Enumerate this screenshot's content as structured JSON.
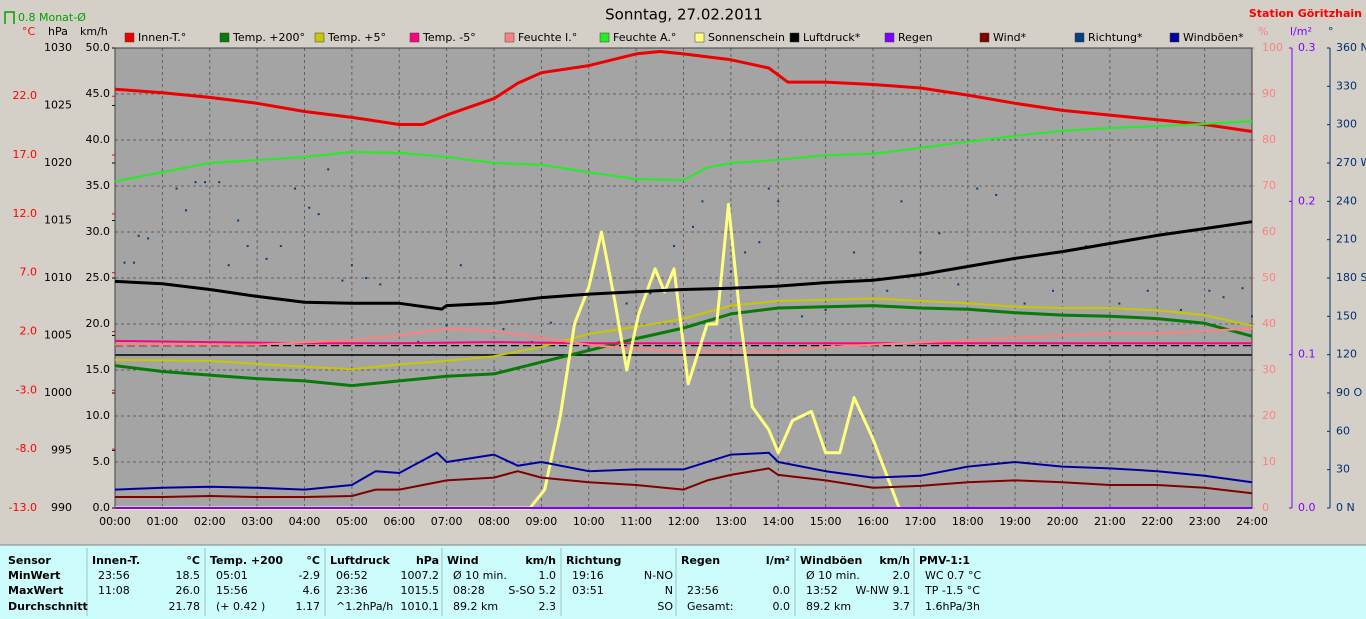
{
  "chart_data": {
    "type": "line",
    "title": "Sonntag, 27.02.2011",
    "station": "Station Göritzhain",
    "monthly_avg": {
      "label": "0.8 Monat-Ø",
      "value": 0.8,
      "axis": "c",
      "color": "#00a000"
    },
    "grid": true,
    "xlim": [
      0,
      24
    ],
    "xticks": [
      {
        "value": 0,
        "label": "00:00"
      },
      {
        "value": 1,
        "label": "01:00"
      },
      {
        "value": 2,
        "label": "02:00"
      },
      {
        "value": 3,
        "label": "03:00"
      },
      {
        "value": 4,
        "label": "04:00"
      },
      {
        "value": 5,
        "label": "05:00"
      },
      {
        "value": 6,
        "label": "06:00"
      },
      {
        "value": 7,
        "label": "07:00"
      },
      {
        "value": 8,
        "label": "08:00"
      },
      {
        "value": 9,
        "label": "09:00"
      },
      {
        "value": 10,
        "label": "10:00"
      },
      {
        "value": 11,
        "label": "11:00"
      },
      {
        "value": 12,
        "label": "12:00"
      },
      {
        "value": 13,
        "label": "13:00"
      },
      {
        "value": 14,
        "label": "14:00"
      },
      {
        "value": 15,
        "label": "15:00"
      },
      {
        "value": 16,
        "label": "16:00"
      },
      {
        "value": 17,
        "label": "17:00"
      },
      {
        "value": 18,
        "label": "18:00"
      },
      {
        "value": 19,
        "label": "19:00"
      },
      {
        "value": 20,
        "label": "20:00"
      },
      {
        "value": 21,
        "label": "21:00"
      },
      {
        "value": 22,
        "label": "22:00"
      },
      {
        "value": 23,
        "label": "23:00"
      },
      {
        "value": 24,
        "label": "24:00"
      }
    ],
    "axes": [
      {
        "id": "c",
        "label": "°C",
        "color": "#ff0000",
        "lim": [
          -13,
          26.1
        ],
        "ticks": [
          {
            "value": -13,
            "label": "-13.0"
          },
          {
            "value": -8,
            "label": "-8.0"
          },
          {
            "value": -3,
            "label": "-3.0"
          },
          {
            "value": 2,
            "label": "2.0"
          },
          {
            "value": 7,
            "label": "7.0"
          },
          {
            "value": 12,
            "label": "12.0"
          },
          {
            "value": 17,
            "label": "17.0"
          },
          {
            "value": 22,
            "label": "22.0"
          }
        ]
      },
      {
        "id": "hPa",
        "label": "hPa",
        "color": "#000000",
        "lim": [
          990,
          1030
        ],
        "ticks": [
          990,
          995,
          1000,
          1005,
          1010,
          1015,
          1020,
          1025,
          1030
        ]
      },
      {
        "id": "kmh",
        "label": "km/h",
        "color": "#000000",
        "lim": [
          0,
          50
        ],
        "grid": true,
        "ticks": [
          {
            "value": 0,
            "label": "0.0"
          },
          {
            "value": 5,
            "label": "5.0"
          },
          {
            "value": 10,
            "label": "10.0"
          },
          {
            "value": 15,
            "label": "15.0"
          },
          {
            "value": 20,
            "label": "20.0"
          },
          {
            "value": 25,
            "label": "25.0"
          },
          {
            "value": 30,
            "label": "30.0"
          },
          {
            "value": 35,
            "label": "35.0"
          },
          {
            "value": 40,
            "label": "40.0"
          },
          {
            "value": 45,
            "label": "45.0"
          },
          {
            "value": 50,
            "label": "50.0"
          }
        ]
      },
      {
        "id": "pct",
        "label": "%",
        "color": "#ff8080",
        "lim": [
          0,
          100
        ],
        "ticks": [
          0,
          10,
          20,
          30,
          40,
          50,
          60,
          70,
          80,
          90,
          100
        ]
      },
      {
        "id": "lm2",
        "label": "l/m²",
        "color": "#8000ff",
        "lim": [
          0,
          0.3
        ],
        "ticks": [
          {
            "value": 0,
            "label": "0.0"
          },
          0.1,
          0.2,
          0.3
        ]
      },
      {
        "id": "deg",
        "label": "°",
        "color": "#003070",
        "lim": [
          0,
          360
        ],
        "ticks": [
          {
            "value": 0,
            "label": "0 N"
          },
          30,
          60,
          {
            "value": 90,
            "label": "90 O"
          },
          120,
          150,
          {
            "value": 180,
            "label": "180 S"
          },
          210,
          240,
          {
            "value": 270,
            "label": "270 W"
          },
          300,
          330,
          {
            "value": 360,
            "label": "360 N"
          }
        ]
      }
    ],
    "series": [
      {
        "name": "Innen-T.°",
        "color": "#ee0000",
        "axis": "c",
        "width": 3,
        "x": [
          0,
          1,
          2,
          3,
          4,
          5,
          6,
          6.5,
          7,
          8,
          8.5,
          9,
          10,
          11,
          11.5,
          12,
          13,
          13.8,
          14.2,
          15,
          16,
          17,
          18,
          19,
          20,
          21,
          22,
          23,
          24
        ],
        "values": [
          22.6,
          22.3,
          21.9,
          21.4,
          20.7,
          20.2,
          19.6,
          19.6,
          20.4,
          21.8,
          23.1,
          24.0,
          24.6,
          25.6,
          25.8,
          25.6,
          25.1,
          24.4,
          23.2,
          23.2,
          23.0,
          22.7,
          22.1,
          21.4,
          20.8,
          20.4,
          20.0,
          19.6,
          19.0
        ]
      },
      {
        "name": "Temp. +200°",
        "color": "#087a08",
        "axis": "c",
        "width": 3,
        "x": [
          0,
          1,
          2,
          3,
          4,
          5,
          6,
          7,
          8,
          9,
          10,
          11,
          12,
          13,
          14,
          15,
          16,
          17,
          18,
          19,
          20,
          21,
          22,
          23,
          24
        ],
        "values": [
          -0.9,
          -1.4,
          -1.7,
          -2.0,
          -2.2,
          -2.6,
          -2.2,
          -1.8,
          -1.6,
          -0.6,
          0.4,
          1.4,
          2.3,
          3.5,
          4.0,
          4.1,
          4.2,
          4.0,
          3.9,
          3.6,
          3.4,
          3.3,
          3.1,
          2.7,
          1.6
        ]
      },
      {
        "name": "Temp. +5°",
        "color": "#c8c800",
        "axis": "c",
        "width": 2,
        "x": [
          0,
          2,
          4,
          5,
          6,
          7,
          8,
          9,
          10,
          11,
          12,
          13,
          14,
          15,
          16,
          17,
          18,
          19,
          20,
          21,
          22,
          23,
          24
        ],
        "values": [
          -0.4,
          -0.5,
          -1.0,
          -1.2,
          -0.8,
          -0.5,
          -0.1,
          0.7,
          1.8,
          2.4,
          3.1,
          4.2,
          4.6,
          4.7,
          4.8,
          4.6,
          4.4,
          4.1,
          4.0,
          4.0,
          3.8,
          3.4,
          2.5
        ]
      },
      {
        "name": "Temp. -5°",
        "color": "#ff0080",
        "axis": "c",
        "width": 2,
        "x": [
          0,
          2,
          4,
          6,
          8,
          10,
          12,
          14,
          16,
          18,
          20,
          22,
          24
        ],
        "values": [
          1.2,
          1.1,
          1.0,
          1.0,
          1.1,
          1.0,
          1.0,
          1.0,
          1.0,
          1.0,
          1.0,
          1.0,
          1.0
        ]
      },
      {
        "name": "Feuchte I.°",
        "color": "#ff8080",
        "axis": "pct",
        "width": 2,
        "x": [
          0,
          1,
          2,
          3,
          4,
          5,
          6,
          7,
          8,
          9,
          10,
          11,
          12,
          13,
          14,
          15,
          16,
          17,
          18,
          19,
          20,
          21,
          22,
          23,
          24
        ],
        "values": [
          35.5,
          35.5,
          35.5,
          35.5,
          36,
          36.5,
          37.5,
          39,
          38.5,
          37,
          35.5,
          34.5,
          34,
          34,
          34,
          35,
          35.5,
          36,
          36.5,
          37,
          37.5,
          38,
          38,
          38.5,
          39
        ]
      },
      {
        "name": "Feuchte A.°",
        "color": "#22ee22",
        "axis": "pct",
        "width": 2,
        "x": [
          0,
          2,
          4,
          5,
          6,
          7,
          8,
          9,
          10,
          11,
          12,
          12.5,
          13,
          14,
          15,
          16,
          17,
          18,
          19,
          20,
          21,
          22,
          23,
          24
        ],
        "values": [
          71,
          75,
          76.3,
          77.4,
          77.2,
          76.3,
          75,
          74.6,
          73,
          71.5,
          71.3,
          74,
          75,
          75.7,
          76.7,
          77,
          78.3,
          79.6,
          80.9,
          82,
          82.6,
          83,
          83.5,
          84.1
        ]
      },
      {
        "name": "Sonnenschein",
        "color": "#ffff80",
        "axis": "pct",
        "width": 3,
        "x": [
          0,
          8.76,
          9.07,
          9.4,
          9.7,
          10.0,
          10.27,
          10.55,
          10.8,
          11.05,
          11.4,
          11.6,
          11.8,
          12.1,
          12.5,
          12.7,
          12.95,
          13.2,
          13.45,
          13.8,
          14.0,
          14.3,
          14.7,
          15.0,
          15.3,
          15.6,
          16.0,
          16.55
        ],
        "values": [
          0,
          0,
          4,
          20,
          40,
          48,
          60,
          45,
          30,
          42,
          52,
          47,
          52,
          27,
          40,
          40,
          66,
          41,
          22,
          17,
          12,
          19,
          21,
          12,
          12,
          24,
          15,
          0
        ]
      },
      {
        "name": "Luftdruck*",
        "color": "#000000",
        "axis": "hPa",
        "width": 3,
        "x": [
          0,
          1,
          2,
          3,
          4,
          5,
          6,
          6.9,
          7,
          8,
          9,
          10,
          11,
          12,
          13,
          14,
          15,
          16,
          17,
          18,
          19,
          20,
          21,
          22,
          23,
          24
        ],
        "values": [
          1009.7,
          1009.5,
          1009.0,
          1008.4,
          1007.9,
          1007.8,
          1007.8,
          1007.3,
          1007.6,
          1007.8,
          1008.3,
          1008.6,
          1008.8,
          1009.0,
          1009.1,
          1009.3,
          1009.6,
          1009.8,
          1010.3,
          1011.0,
          1011.7,
          1012.3,
          1013.0,
          1013.7,
          1014.3,
          1014.9
        ]
      },
      {
        "name": "Regen",
        "color": "#8000ff",
        "axis": "lm2",
        "width": 2,
        "x": [
          0,
          24
        ],
        "values": [
          0,
          0
        ]
      },
      {
        "name": "Wind*",
        "color": "#800000",
        "axis": "kmh",
        "width": 2,
        "x": [
          0,
          1,
          2,
          3,
          4,
          5,
          5.5,
          6,
          7,
          8,
          8.5,
          9,
          10,
          11,
          12,
          12.5,
          13,
          13.8,
          14,
          15,
          16,
          17,
          18,
          19,
          20,
          21,
          22,
          23,
          24
        ],
        "values": [
          1.2,
          1.2,
          1.3,
          1.2,
          1.2,
          1.3,
          2.0,
          2.0,
          3.0,
          3.3,
          4.0,
          3.3,
          2.8,
          2.5,
          2.0,
          3.0,
          3.6,
          4.3,
          3.6,
          3.0,
          2.2,
          2.4,
          2.8,
          3.0,
          2.8,
          2.5,
          2.5,
          2.2,
          1.6
        ]
      },
      {
        "name": "Richtung*",
        "color": "#004080",
        "axis": "deg",
        "style": "dots",
        "x": [
          0.2,
          0.4,
          0.5,
          0.7,
          1.3,
          1.5,
          1.7,
          1.9,
          2.2,
          2.4,
          2.6,
          2.8,
          3.2,
          3.5,
          3.8,
          4.1,
          4.3,
          4.5,
          4.8,
          5.0,
          5.3,
          5.6,
          6.0,
          6.4,
          6.7,
          7.0,
          7.3,
          7.7,
          8.2,
          8.8,
          9.2,
          9.6,
          10.0,
          10.8,
          11.3,
          11.8,
          12.2,
          12.4,
          13.0,
          13.3,
          13.6,
          13.8,
          14.0,
          14.5,
          15.0,
          15.6,
          16.3,
          16.6,
          17.0,
          17.4,
          17.8,
          18.2,
          18.6,
          19.2,
          19.8,
          20.5,
          21.2,
          21.8,
          22.5,
          23.1,
          23.4,
          23.8,
          24.0
        ],
        "values": [
          192,
          192,
          213,
          211,
          250,
          233,
          255,
          255,
          255,
          190,
          225,
          205,
          195,
          205,
          250,
          235,
          230,
          265,
          178,
          190,
          180,
          175,
          160,
          130,
          120,
          143,
          190,
          160,
          140,
          130,
          145,
          120,
          125,
          160,
          168,
          205,
          220,
          240,
          185,
          200,
          208,
          250,
          240,
          150,
          155,
          200,
          170,
          240,
          200,
          215,
          175,
          250,
          245,
          160,
          170,
          205,
          160,
          170,
          155,
          170,
          165,
          172,
          150
        ]
      },
      {
        "name": "Windböen*",
        "color": "#0000a0",
        "axis": "kmh",
        "width": 2,
        "x": [
          0,
          1,
          2,
          3,
          4,
          5,
          5.5,
          6,
          6.8,
          7,
          8,
          8.5,
          9,
          10,
          11,
          12,
          13,
          13.8,
          14,
          15,
          16,
          17,
          18,
          19,
          20,
          21,
          22,
          23,
          24
        ],
        "values": [
          2.0,
          2.2,
          2.3,
          2.2,
          2.0,
          2.5,
          4.0,
          3.8,
          6.0,
          5.0,
          5.8,
          4.6,
          5.0,
          4.0,
          4.2,
          4.2,
          5.8,
          6.0,
          5.0,
          4.0,
          3.3,
          3.5,
          4.5,
          5.0,
          4.5,
          4.3,
          4.0,
          3.5,
          2.8
        ]
      }
    ]
  },
  "table": {
    "row_header": "Sensor",
    "row_labels": [
      "MinWert",
      "MaxWert",
      "Durchschnitt"
    ],
    "columns": [
      {
        "header": {
          "l": "Innen-T.",
          "r": "°C"
        },
        "rows": [
          {
            "l": "23:56",
            "r": "18.5"
          },
          {
            "l": "11:08",
            "r": "26.0"
          },
          {
            "r": "21.78"
          }
        ]
      },
      {
        "header": {
          "l": "Temp. +200",
          "r": "°C"
        },
        "rows": [
          {
            "l": "05:01",
            "r": "-2.9"
          },
          {
            "l": "15:56",
            "r": "4.6"
          },
          {
            "l": "(+ 0.42 )",
            "r": "1.17"
          }
        ]
      },
      {
        "header": {
          "l": "Luftdruck",
          "r": "hPa"
        },
        "rows": [
          {
            "l": "06:52",
            "r": "1007.2"
          },
          {
            "l": "23:36",
            "r": "1015.5"
          },
          {
            "l": "^1.2hPa/h",
            "r": "1010.1"
          }
        ]
      },
      {
        "header": {
          "l": "Wind",
          "r": "km/h"
        },
        "rows": [
          {
            "l": "Ø 10 min.",
            "r": "1.0"
          },
          {
            "l": "08:28",
            "r": "S-SO 5.2"
          },
          {
            "l": "89.2 km",
            "r": "2.3"
          }
        ]
      },
      {
        "header": {
          "l": "Richtung"
        },
        "rows": [
          {
            "l": "19:16",
            "r": "N-NO"
          },
          {
            "l": "03:51",
            "r": "N"
          },
          {
            "r": "SO"
          }
        ]
      },
      {
        "header": {
          "l": "Regen",
          "r": "l/m²"
        },
        "rows": [
          {},
          {
            "l": "23:56",
            "r": "0.0"
          },
          {
            "l": "Gesamt:",
            "r": "0.0"
          }
        ]
      },
      {
        "header": {
          "l": "Windböen",
          "r": "km/h"
        },
        "rows": [
          {
            "l": "Ø 10 min.",
            "r": "2.0"
          },
          {
            "l": "13:52",
            "r": "W-NW 9.1"
          },
          {
            "l": "89.2 km",
            "r": "3.7"
          }
        ]
      },
      {
        "header": {
          "l": "PMV-1:1"
        },
        "rows": [
          {
            "l": "WC 0.7 °C"
          },
          {
            "l": "TP -1.5 °C"
          },
          {
            "l": "1.6hPa/3h"
          }
        ]
      }
    ]
  }
}
